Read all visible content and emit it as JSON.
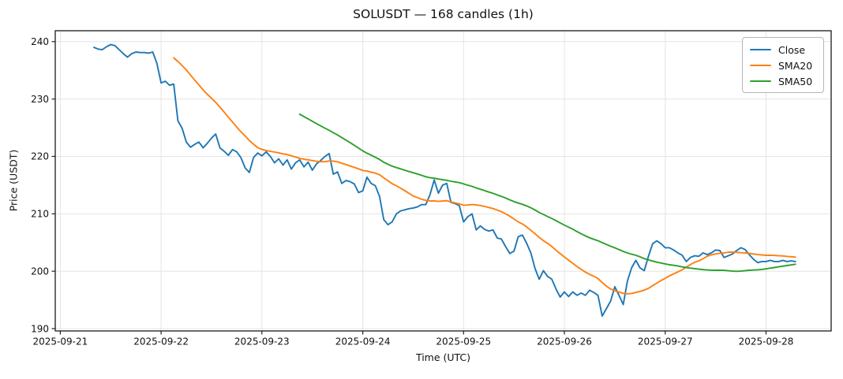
{
  "chart_data": {
    "type": "line",
    "title": "SOLUSDT — 168 candles (1h)",
    "symbol": "SOLUSDT",
    "candles": 168,
    "interval": "1h",
    "xlabel": "Time (UTC)",
    "ylabel": "Price (USDT)",
    "grid": true,
    "legend": {
      "position": "upper right",
      "entries": [
        "Close",
        "SMA20",
        "SMA50"
      ]
    },
    "x_tick_labels": [
      "2025-09-21",
      "2025-09-22",
      "2025-09-23",
      "2025-09-24",
      "2025-09-25",
      "2025-09-26",
      "2025-09-27",
      "2025-09-28"
    ],
    "x_tick_hours": [
      -8,
      16,
      40,
      64,
      88,
      112,
      136,
      160
    ],
    "y_ticks": [
      190,
      200,
      210,
      220,
      230,
      240
    ],
    "xlim_hours": [
      -9.2,
      175.5
    ],
    "ylim": [
      189.6,
      241.9
    ],
    "series": [
      {
        "name": "Close",
        "color": "#1f77b4",
        "kind": "close"
      },
      {
        "name": "SMA20",
        "color": "#ff7f0e",
        "kind": "sma",
        "window": 20
      },
      {
        "name": "SMA50",
        "color": "#2ca02c",
        "kind": "sma",
        "window": 50
      }
    ],
    "close": [
      239.0,
      238.7,
      238.6,
      239.1,
      239.5,
      239.3,
      238.6,
      237.9,
      237.3,
      237.9,
      238.2,
      238.1,
      238.1,
      238.0,
      238.2,
      236.2,
      232.8,
      233.1,
      232.4,
      232.6,
      226.2,
      224.9,
      222.5,
      221.6,
      222.1,
      222.5,
      221.5,
      222.3,
      223.2,
      223.9,
      221.5,
      220.9,
      220.2,
      221.2,
      220.8,
      219.8,
      218.0,
      217.2,
      219.8,
      220.6,
      220.1,
      220.8,
      220.0,
      218.9,
      219.6,
      218.5,
      219.4,
      217.8,
      218.9,
      219.4,
      218.2,
      219.0,
      217.6,
      218.7,
      219.3,
      220.0,
      220.5,
      216.9,
      217.3,
      215.3,
      215.8,
      215.6,
      215.2,
      213.7,
      214.0,
      216.4,
      215.3,
      214.9,
      213.0,
      209.0,
      208.1,
      208.6,
      210.0,
      210.5,
      210.7,
      210.9,
      211.0,
      211.2,
      211.6,
      211.6,
      213.3,
      215.9,
      213.6,
      215.0,
      215.3,
      212.0,
      211.8,
      211.4,
      208.6,
      209.5,
      210.0,
      207.2,
      207.9,
      207.3,
      207.0,
      207.2,
      205.8,
      205.6,
      204.3,
      203.1,
      203.5,
      206.0,
      206.3,
      204.9,
      203.2,
      200.5,
      198.6,
      200.1,
      199.1,
      198.6,
      196.9,
      195.5,
      196.4,
      195.6,
      196.4,
      195.8,
      196.2,
      195.8,
      196.7,
      196.3,
      195.8,
      192.2,
      193.5,
      194.8,
      197.3,
      195.8,
      194.2,
      198.3,
      200.6,
      201.9,
      200.6,
      200.1,
      202.6,
      204.8,
      205.3,
      204.8,
      204.1,
      204.1,
      203.7,
      203.2,
      202.8,
      201.7,
      202.4,
      202.7,
      202.6,
      203.2,
      202.9,
      203.2,
      203.7,
      203.6,
      202.4,
      202.7,
      203.0,
      203.6,
      204.1,
      203.8,
      202.9,
      202.1,
      201.5,
      201.7,
      201.7,
      201.9,
      201.7,
      201.7,
      201.9,
      201.7,
      201.8,
      201.7
    ]
  }
}
